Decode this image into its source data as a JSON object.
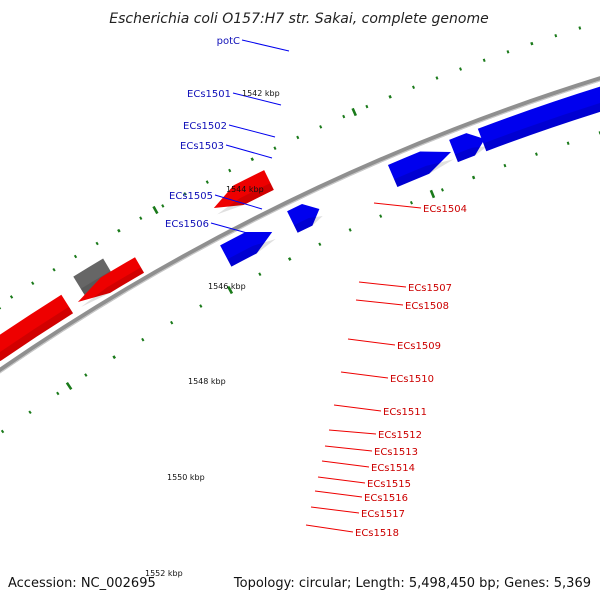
{
  "title": "Escherichia coli O157:H7 str. Sakai, complete genome",
  "accession": "Accession: NC_002695",
  "topology": "Topology: circular; Length: 5,498,450 bp; Genes: 5,369",
  "colors": {
    "reverse": "#0000ee",
    "forward": "#ee0000",
    "rna": "#4a86b4",
    "other": "#666666",
    "backbone": "#8f8f8f",
    "tick": "#1a7a1a"
  },
  "scale_labels": [
    "1542 kbp",
    "1544 kbp",
    "1546 kbp",
    "1548 kbp",
    "1550 kbp",
    "1552 kbp"
  ],
  "genes": [
    {
      "name": "potC",
      "strand": "reverse",
      "type": "rna"
    },
    {
      "name": "ECs1501",
      "strand": "reverse",
      "type": "cds"
    },
    {
      "name": "ECs1502",
      "strand": "reverse",
      "type": "cds"
    },
    {
      "name": "ECs1503",
      "strand": "reverse",
      "type": "cds"
    },
    {
      "name": "ECs1505",
      "strand": "reverse",
      "type": "cds"
    },
    {
      "name": "ECs1506",
      "strand": "reverse",
      "type": "cds"
    },
    {
      "name": "ECs1504",
      "strand": "forward",
      "type": "cds"
    },
    {
      "name": "ECs1507",
      "strand": "forward",
      "type": "other"
    },
    {
      "name": "ECs1508",
      "strand": "forward",
      "type": "cds"
    },
    {
      "name": "ECs1509",
      "strand": "forward",
      "type": "cds"
    },
    {
      "name": "ECs1510",
      "strand": "forward",
      "type": "cds"
    },
    {
      "name": "ECs1511",
      "strand": "forward",
      "type": "cds"
    },
    {
      "name": "ECs1512",
      "strand": "forward",
      "type": "cds"
    },
    {
      "name": "ECs1513",
      "strand": "forward",
      "type": "cds"
    },
    {
      "name": "ECs1514",
      "strand": "forward",
      "type": "cds"
    },
    {
      "name": "ECs1515",
      "strand": "forward",
      "type": "cds"
    },
    {
      "name": "ECs1516",
      "strand": "forward",
      "type": "cds"
    },
    {
      "name": "ECs1517",
      "strand": "forward",
      "type": "cds"
    },
    {
      "name": "ECs1518",
      "strand": "forward",
      "type": "cds"
    }
  ]
}
